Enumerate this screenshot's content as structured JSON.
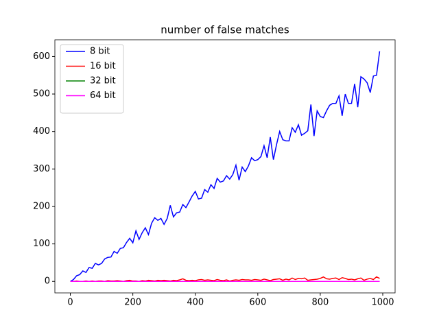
{
  "chart_data": {
    "type": "line",
    "title": "number of false matches",
    "x": [
      0,
      10,
      20,
      30,
      40,
      50,
      60,
      70,
      80,
      90,
      100,
      110,
      120,
      130,
      140,
      150,
      160,
      170,
      180,
      190,
      200,
      210,
      220,
      230,
      240,
      250,
      260,
      270,
      280,
      290,
      300,
      310,
      320,
      330,
      340,
      350,
      360,
      370,
      380,
      390,
      400,
      410,
      420,
      430,
      440,
      450,
      460,
      470,
      480,
      490,
      500,
      510,
      520,
      530,
      540,
      550,
      560,
      570,
      580,
      590,
      600,
      610,
      620,
      630,
      640,
      650,
      660,
      670,
      680,
      690,
      700,
      710,
      720,
      730,
      740,
      750,
      760,
      770,
      780,
      790,
      800,
      810,
      820,
      830,
      840,
      850,
      860,
      870,
      880,
      890,
      900,
      910,
      920,
      930,
      940,
      950,
      960,
      970,
      980,
      990
    ],
    "series": [
      {
        "name": "8 bit",
        "color": "#0000ff",
        "values": [
          0,
          5,
          15,
          18,
          28,
          24,
          37,
          35,
          48,
          44,
          48,
          60,
          64,
          65,
          80,
          75,
          88,
          90,
          104,
          115,
          103,
          135,
          112,
          130,
          143,
          125,
          155,
          170,
          163,
          168,
          152,
          168,
          203,
          172,
          183,
          185,
          205,
          197,
          212,
          228,
          240,
          220,
          222,
          245,
          238,
          258,
          248,
          275,
          265,
          268,
          282,
          273,
          285,
          310,
          270,
          305,
          293,
          308,
          330,
          322,
          325,
          333,
          362,
          330,
          385,
          325,
          365,
          400,
          378,
          375,
          375,
          410,
          398,
          418,
          390,
          395,
          402,
          472,
          388,
          455,
          440,
          437,
          455,
          470,
          475,
          475,
          495,
          442,
          500,
          475,
          475,
          527,
          465,
          546,
          540,
          530,
          504,
          548,
          550,
          614
        ]
      },
      {
        "name": "16 bit",
        "color": "#ff0000",
        "values": [
          0,
          0,
          1,
          0,
          0,
          1,
          0,
          1,
          0,
          1,
          1,
          0,
          2,
          1,
          1,
          2,
          1,
          0,
          2,
          3,
          1,
          1,
          0,
          2,
          1,
          3,
          2,
          1,
          3,
          2,
          3,
          2,
          1,
          3,
          2,
          4,
          7,
          3,
          2,
          3,
          2,
          4,
          5,
          3,
          4,
          3,
          2,
          5,
          3,
          2,
          4,
          1,
          3,
          4,
          3,
          5,
          4,
          4,
          3,
          5,
          4,
          3,
          6,
          4,
          2,
          5,
          6,
          7,
          3,
          6,
          4,
          9,
          5,
          8,
          7,
          9,
          3,
          4,
          5,
          6,
          8,
          12,
          7,
          6,
          8,
          9,
          5,
          10,
          8,
          5,
          6,
          4,
          7,
          9,
          3,
          6,
          8,
          5,
          12,
          8
        ]
      },
      {
        "name": "32 bit",
        "color": "#008000",
        "values": [
          0,
          0,
          0,
          0,
          0,
          0,
          0,
          0,
          0,
          0,
          0,
          0,
          0,
          0,
          0,
          0,
          0,
          0,
          0,
          0,
          0,
          0,
          0,
          0,
          0,
          0,
          0,
          0,
          0,
          0,
          0,
          0,
          0,
          0,
          0,
          0,
          0,
          0,
          0,
          0,
          0,
          0,
          0,
          0,
          0,
          0,
          0,
          0,
          0,
          0,
          0,
          0,
          0,
          0,
          0,
          0,
          0,
          0,
          0,
          0,
          0,
          0,
          0,
          0,
          0,
          0,
          0,
          0,
          0,
          0,
          0,
          0,
          0,
          0,
          0,
          0,
          0,
          0,
          0,
          0,
          0,
          0,
          0,
          0,
          0,
          0,
          0,
          0,
          0,
          0,
          0,
          0,
          0,
          0,
          0,
          0,
          0,
          0,
          0,
          0
        ]
      },
      {
        "name": "64 bit",
        "color": "#ff00ff",
        "values": [
          0,
          0,
          0,
          0,
          0,
          0,
          0,
          0,
          0,
          0,
          0,
          0,
          0,
          0,
          0,
          0,
          0,
          0,
          0,
          0,
          0,
          0,
          0,
          0,
          0,
          0,
          0,
          0,
          0,
          0,
          0,
          0,
          0,
          0,
          0,
          0,
          0,
          0,
          0,
          0,
          0,
          0,
          0,
          0,
          0,
          0,
          0,
          0,
          0,
          0,
          0,
          0,
          0,
          0,
          0,
          0,
          0,
          0,
          0,
          0,
          0,
          0,
          0,
          0,
          0,
          0,
          0,
          0,
          0,
          0,
          0,
          0,
          0,
          0,
          0,
          0,
          0,
          0,
          0,
          0,
          0,
          0,
          0,
          0,
          0,
          0,
          0,
          0,
          0,
          0,
          0,
          0,
          0,
          0,
          0,
          0,
          0,
          0,
          0,
          0
        ]
      }
    ],
    "xlim": [
      -49.5,
      1039.5
    ],
    "xticks": [
      0,
      200,
      400,
      600,
      800,
      1000
    ],
    "ylim": [
      -30.7,
      644.7
    ],
    "yticks": [
      0,
      100,
      200,
      300,
      400,
      500,
      600
    ],
    "legend": "upper left"
  }
}
